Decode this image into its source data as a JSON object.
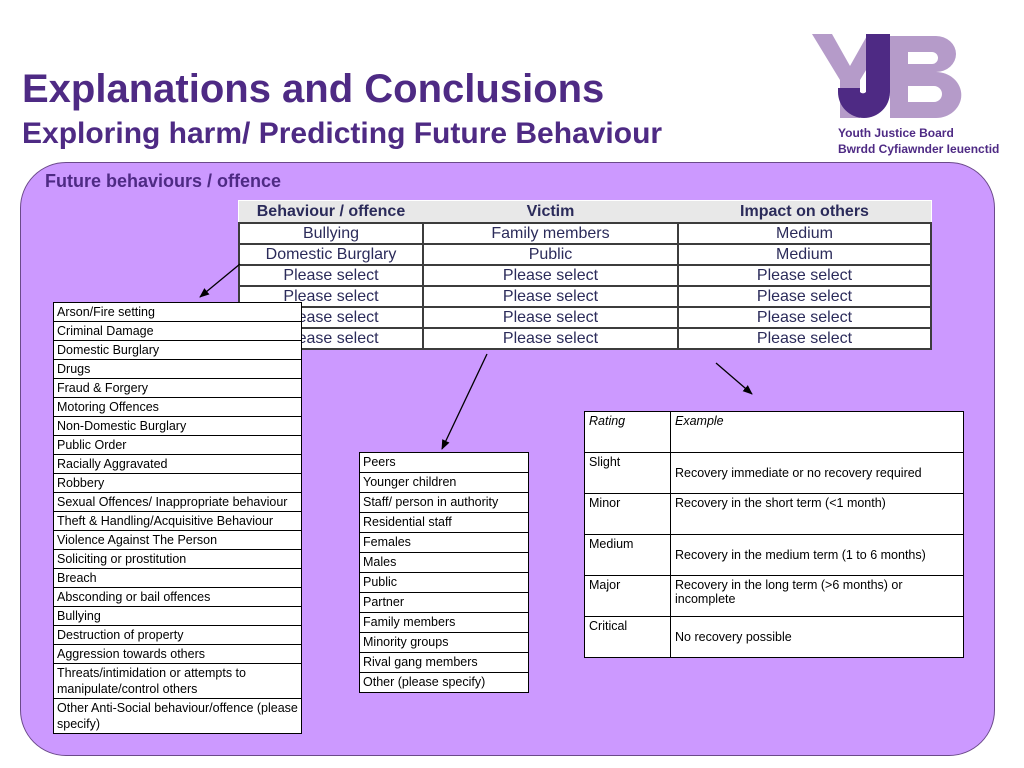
{
  "header": {
    "title": "Explanations and Conclusions",
    "subtitle": "Exploring harm/ Predicting Future Behaviour"
  },
  "logo": {
    "mark": "YJB",
    "line1": "Youth Justice Board",
    "line2": "Bwrdd Cyfiawnder Ieuenctid",
    "colors": {
      "light": "#b59bc9",
      "dark": "#4e2a84"
    }
  },
  "section": {
    "heading": "Future behaviours / offence"
  },
  "main_table": {
    "headers": [
      "Behaviour / offence",
      "Victim",
      "Impact on others"
    ],
    "rows": [
      [
        "Bullying",
        "Family members",
        "Medium"
      ],
      [
        "Domestic Burglary",
        "Public",
        "Medium"
      ],
      [
        "Please select",
        "Please select",
        "Please select"
      ],
      [
        "Please select",
        "Please select",
        "Please select"
      ],
      [
        "Please select",
        "Please select",
        "Please select"
      ],
      [
        "Please select",
        "Please select",
        "Please select"
      ]
    ]
  },
  "behaviour_options": [
    "Arson/Fire setting",
    "Criminal Damage",
    "Domestic Burglary",
    "Drugs",
    "Fraud & Forgery",
    "Motoring Offences",
    "Non-Domestic Burglary",
    "Public Order",
    "Racially Aggravated",
    "Robbery",
    "Sexual Offences/ Inappropriate behaviour",
    "Theft & Handling/Acquisitive Behaviour",
    "Violence Against The Person",
    "Soliciting or prostitution",
    "Breach",
    "Absconding or bail offences",
    "Bullying",
    "Destruction of property",
    "Aggression towards others",
    "Threats/intimidation or attempts to manipulate/control others",
    "Other Anti-Social behaviour/offence (please specify)"
  ],
  "victim_options": [
    "Peers",
    "Younger children",
    "Staff/ person in authority",
    "Residential staff",
    "Females",
    "Males",
    "Public",
    "Partner",
    "Family members",
    "Minority groups",
    "Rival gang members",
    "Other (please specify)"
  ],
  "rating_table": {
    "headers": [
      "Rating",
      "Example"
    ],
    "rows": [
      [
        "Slight",
        "Recovery immediate or no recovery required"
      ],
      [
        "Minor",
        "Recovery in the short term (<1 month)"
      ],
      [
        "Medium",
        "Recovery in the medium term (1 to 6 months)"
      ],
      [
        "Major",
        "Recovery in the long term (>6 months) or incomplete"
      ],
      [
        "Critical",
        "No recovery possible"
      ]
    ]
  },
  "colors": {
    "title": "#4e2a84",
    "panel": "#cc99ff",
    "table_text": "#2b2b5a"
  }
}
